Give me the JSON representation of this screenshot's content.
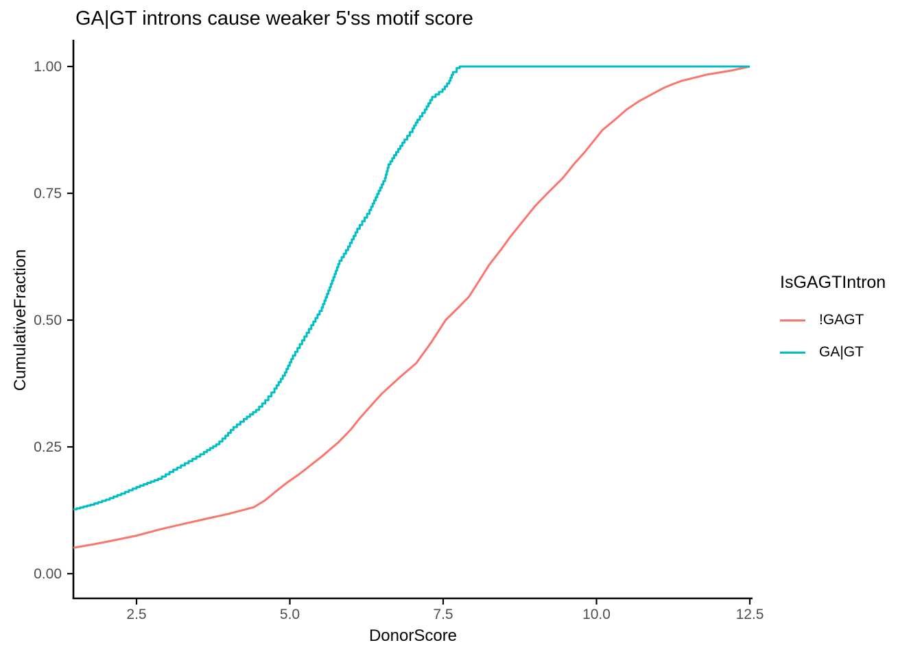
{
  "chart_data": {
    "type": "line",
    "subtype": "ecdf",
    "title": "GA|GT introns cause weaker 5'ss motif score",
    "xlabel": "DonorScore",
    "ylabel": "CumulativeFraction",
    "xlim": [
      1.45,
      12.55
    ],
    "ylim": [
      -0.05,
      1.05
    ],
    "grid": false,
    "x_ticks": [
      2.5,
      5.0,
      7.5,
      10.0,
      12.5
    ],
    "x_tick_labels": [
      "2.5",
      "5.0",
      "7.5",
      "10.0",
      "12.5"
    ],
    "y_ticks": [
      0.0,
      0.25,
      0.5,
      0.75,
      1.0
    ],
    "y_tick_labels": [
      "0.00",
      "0.25",
      "0.50",
      "0.75",
      "1.00"
    ],
    "legend": {
      "title": "IsGAGTIntron",
      "position": "right"
    },
    "axis_color": "#000000",
    "tick_label_color": "#4D4D4D",
    "series": [
      {
        "name": "!GAGT",
        "color": "#F8766D",
        "steps": false,
        "points": [
          [
            1.47,
            0.051
          ],
          [
            1.8,
            0.058
          ],
          [
            2.1,
            0.065
          ],
          [
            2.5,
            0.075
          ],
          [
            2.9,
            0.088
          ],
          [
            3.3,
            0.099
          ],
          [
            3.7,
            0.11
          ],
          [
            4.0,
            0.118
          ],
          [
            4.41,
            0.131
          ],
          [
            4.6,
            0.145
          ],
          [
            4.78,
            0.163
          ],
          [
            4.97,
            0.181
          ],
          [
            5.15,
            0.196
          ],
          [
            5.3,
            0.21
          ],
          [
            5.53,
            0.232
          ],
          [
            5.8,
            0.26
          ],
          [
            6.0,
            0.285
          ],
          [
            6.13,
            0.305
          ],
          [
            6.35,
            0.335
          ],
          [
            6.5,
            0.355
          ],
          [
            6.8,
            0.388
          ],
          [
            7.06,
            0.415
          ],
          [
            7.3,
            0.455
          ],
          [
            7.54,
            0.5
          ],
          [
            7.75,
            0.525
          ],
          [
            7.92,
            0.546
          ],
          [
            8.1,
            0.58
          ],
          [
            8.25,
            0.609
          ],
          [
            8.45,
            0.64
          ],
          [
            8.6,
            0.665
          ],
          [
            8.8,
            0.695
          ],
          [
            9.0,
            0.725
          ],
          [
            9.2,
            0.75
          ],
          [
            9.45,
            0.78
          ],
          [
            9.65,
            0.81
          ],
          [
            9.8,
            0.83
          ],
          [
            10.0,
            0.86
          ],
          [
            10.1,
            0.875
          ],
          [
            10.3,
            0.895
          ],
          [
            10.49,
            0.915
          ],
          [
            10.7,
            0.932
          ],
          [
            10.9,
            0.945
          ],
          [
            11.1,
            0.958
          ],
          [
            11.24,
            0.965
          ],
          [
            11.4,
            0.972
          ],
          [
            11.6,
            0.978
          ],
          [
            11.8,
            0.984
          ],
          [
            12.0,
            0.988
          ],
          [
            12.2,
            0.992
          ],
          [
            12.35,
            0.996
          ],
          [
            12.5,
            1.0
          ]
        ]
      },
      {
        "name": "GA|GT",
        "color": "#00BFC4",
        "steps": true,
        "points": [
          [
            1.47,
            0.127
          ],
          [
            1.75,
            0.136
          ],
          [
            2.0,
            0.146
          ],
          [
            2.25,
            0.158
          ],
          [
            2.5,
            0.171
          ],
          [
            2.85,
            0.187
          ],
          [
            3.1,
            0.205
          ],
          [
            3.35,
            0.222
          ],
          [
            3.6,
            0.24
          ],
          [
            3.8,
            0.255
          ],
          [
            3.95,
            0.272
          ],
          [
            4.08,
            0.289
          ],
          [
            4.25,
            0.305
          ],
          [
            4.45,
            0.323
          ],
          [
            4.6,
            0.342
          ],
          [
            4.75,
            0.365
          ],
          [
            4.92,
            0.397
          ],
          [
            5.05,
            0.43
          ],
          [
            5.2,
            0.46
          ],
          [
            5.35,
            0.49
          ],
          [
            5.52,
            0.525
          ],
          [
            5.65,
            0.565
          ],
          [
            5.81,
            0.617
          ],
          [
            5.95,
            0.645
          ],
          [
            6.1,
            0.68
          ],
          [
            6.3,
            0.717
          ],
          [
            6.45,
            0.755
          ],
          [
            6.55,
            0.78
          ],
          [
            6.61,
            0.807
          ],
          [
            6.7,
            0.825
          ],
          [
            6.87,
            0.856
          ],
          [
            7.0,
            0.878
          ],
          [
            7.08,
            0.895
          ],
          [
            7.2,
            0.915
          ],
          [
            7.32,
            0.94
          ],
          [
            7.49,
            0.955
          ],
          [
            7.6,
            0.972
          ],
          [
            7.66,
            0.989
          ],
          [
            7.72,
            0.997
          ],
          [
            7.77,
            1.0
          ],
          [
            12.5,
            1.0
          ]
        ]
      }
    ]
  }
}
